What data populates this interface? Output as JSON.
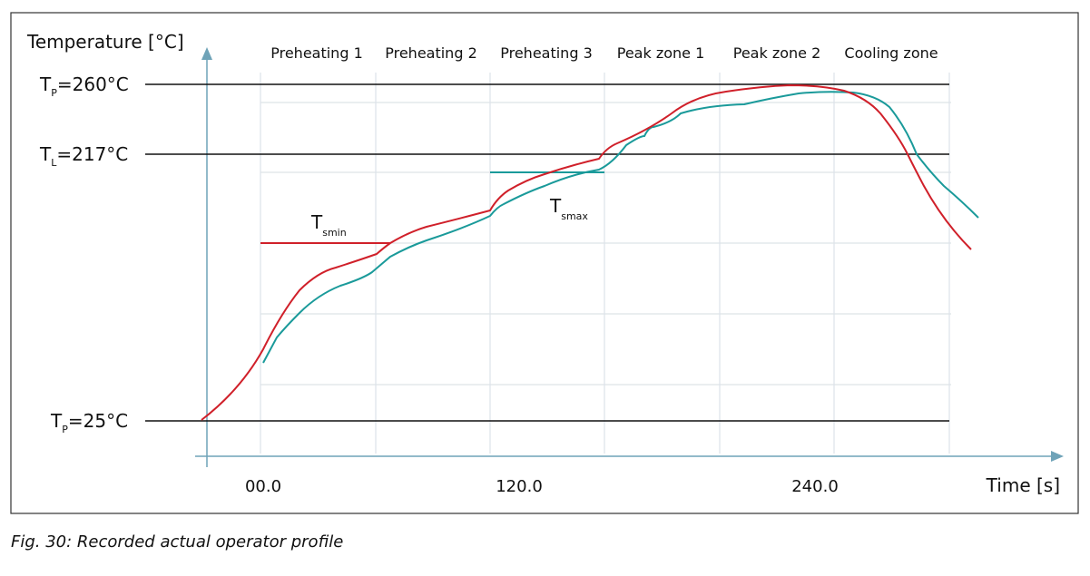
{
  "figure": {
    "y_axis_label": "Temperature [°C]",
    "x_axis_label": "Time [s]",
    "zones": [
      "Preheating 1",
      "Preheating 2",
      "Preheating 3",
      "Peak zone 1",
      "Peak zone 2",
      "Cooling zone"
    ],
    "levels": [
      {
        "symbol": "T",
        "sub": "P",
        "text": "=260°C"
      },
      {
        "symbol": "T",
        "sub": "L",
        "text": "=217°C"
      },
      {
        "symbol": "T",
        "sub": "P",
        "text": "=25°C"
      }
    ],
    "x_labels": [
      "00.0",
      "120.0",
      "240.0"
    ],
    "annotations": [
      {
        "symbol": "T",
        "sub": "smin"
      },
      {
        "symbol": "T",
        "sub": "smax"
      }
    ],
    "caption": "Fig. 30: Recorded actual operator profile"
  }
}
